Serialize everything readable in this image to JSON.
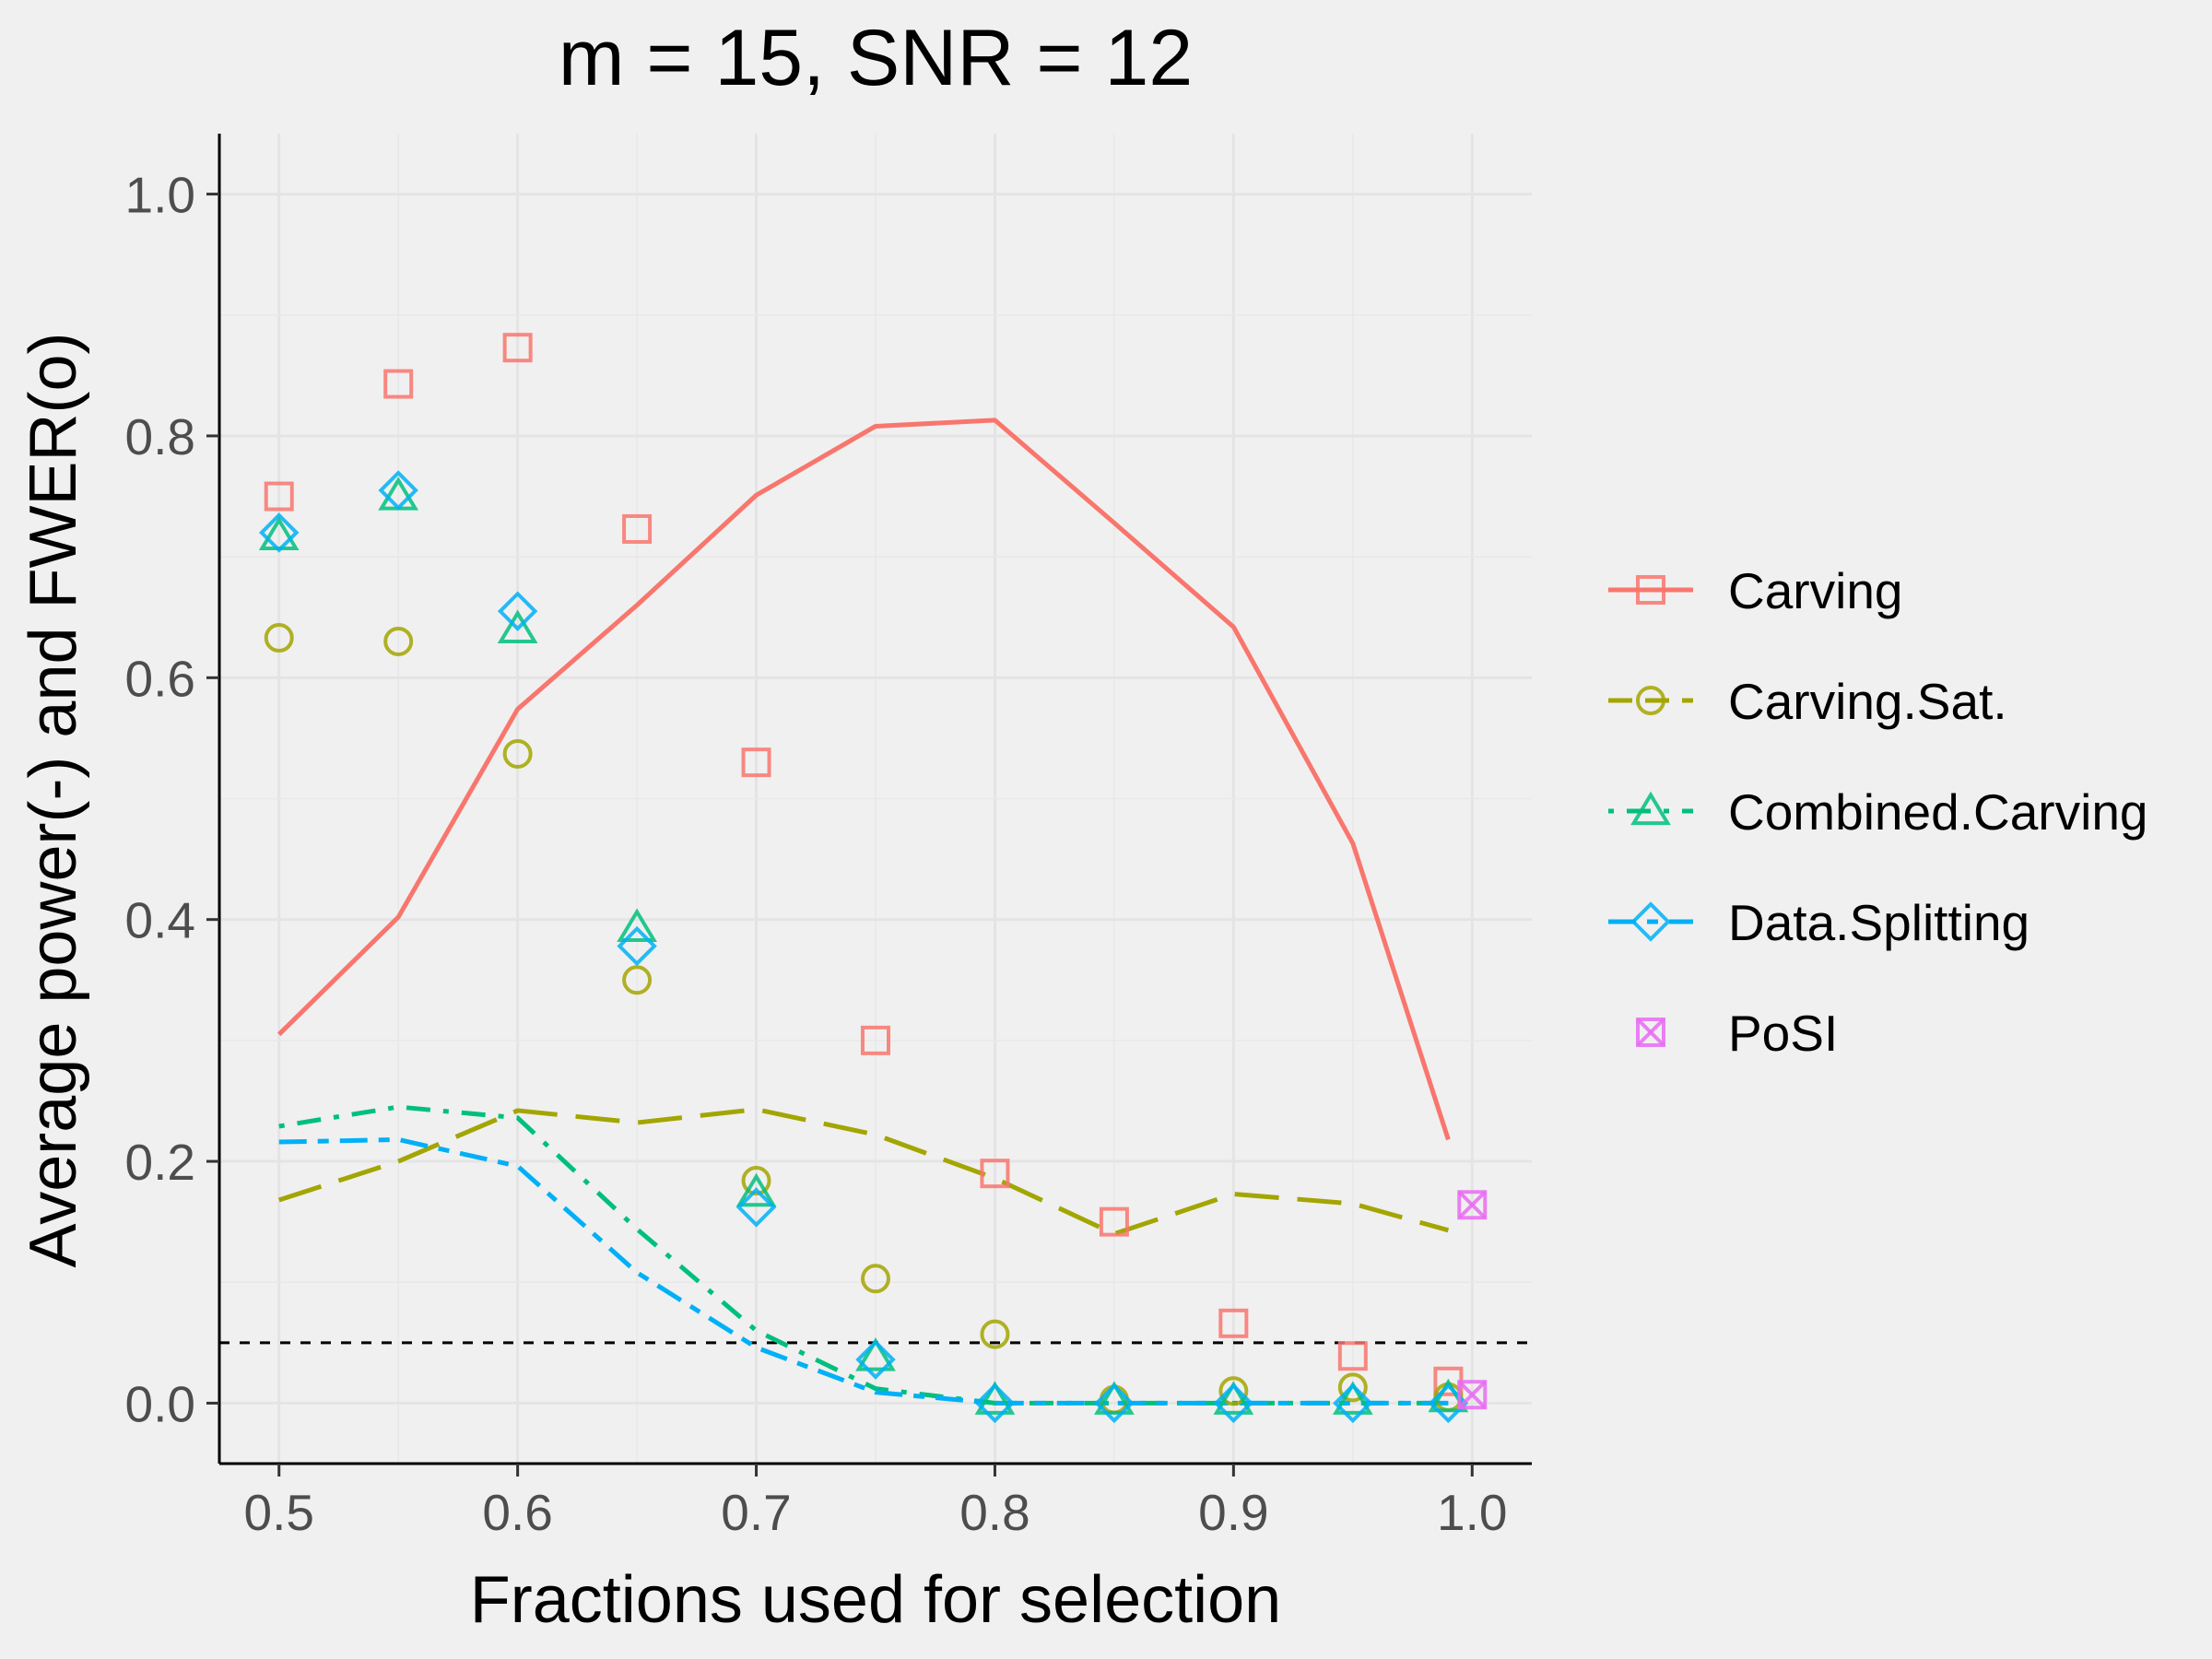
{
  "chart_data": {
    "type": "line",
    "title": "m = 15, SNR = 12",
    "xlabel": "Fractions used for selection",
    "ylabel": "Average power(-) and FWER(o)",
    "xlim": [
      0.475,
      1.025
    ],
    "ylim": [
      -0.05,
      1.05
    ],
    "xticks": [
      0.5,
      0.6,
      0.7,
      0.8,
      0.9,
      1.0
    ],
    "xtick_labels": [
      "0.5",
      "0.6",
      "0.7",
      "0.8",
      "0.9",
      "1.0"
    ],
    "yticks": [
      0.0,
      0.2,
      0.4,
      0.6,
      0.8,
      1.0
    ],
    "ytick_labels": [
      "0.0",
      "0.2",
      "0.4",
      "0.6",
      "0.8",
      "1.0"
    ],
    "grid": true,
    "legend_position": "right",
    "reference_line": {
      "y": 0.05,
      "style": "dashed",
      "color": "#000000"
    },
    "x": [
      0.5,
      0.55,
      0.6,
      0.65,
      0.7,
      0.75,
      0.8,
      0.85,
      0.9,
      0.95,
      0.99
    ],
    "series": [
      {
        "name": "Carving",
        "color": "#F8766D",
        "marker": "square",
        "dash": "solid",
        "power": [
          0.305,
          0.402,
          0.574,
          0.66,
          0.751,
          0.808,
          0.813,
          0.728,
          0.642,
          0.463,
          0.218
        ],
        "fwer": [
          0.75,
          0.843,
          0.873,
          0.723,
          0.53,
          0.3,
          0.19,
          0.15,
          0.066,
          0.039,
          0.018
        ]
      },
      {
        "name": "Carving.Sat.",
        "color": "#A3A500",
        "marker": "circle",
        "dash": "longdash",
        "power": [
          0.168,
          0.2,
          0.242,
          0.232,
          0.243,
          0.222,
          0.186,
          0.14,
          0.173,
          0.165,
          0.143
        ],
        "fwer": [
          0.633,
          0.63,
          0.537,
          0.35,
          0.184,
          0.103,
          0.057,
          0.003,
          0.01,
          0.013,
          0.005
        ]
      },
      {
        "name": "Combined.Carving",
        "color": "#00BF7D",
        "marker": "triangle",
        "dash": "dotdash",
        "power": [
          0.229,
          0.245,
          0.236,
          0.144,
          0.06,
          0.012,
          0.0,
          0.0,
          0.0,
          0.0,
          0.0
        ],
        "fwer": [
          0.717,
          0.75,
          0.64,
          0.393,
          0.174,
          0.038,
          0.002,
          0.002,
          0.002,
          0.002,
          0.004
        ]
      },
      {
        "name": "Data.Splitting",
        "color": "#00B0F6",
        "marker": "diamond",
        "dash": "twodash",
        "power": [
          0.216,
          0.218,
          0.196,
          0.108,
          0.046,
          0.009,
          0.0,
          0.0,
          0.0,
          0.0,
          0.0
        ],
        "fwer": [
          0.72,
          0.755,
          0.655,
          0.378,
          0.162,
          0.036,
          0.0,
          0.0,
          0.0,
          0.0,
          0.0
        ]
      },
      {
        "name": "PoSI",
        "color": "#E76BF3",
        "marker": "square-x",
        "dash": "none",
        "x": [
          1.0
        ],
        "power": [
          0.164
        ],
        "fwer": [
          0.007
        ]
      }
    ]
  }
}
